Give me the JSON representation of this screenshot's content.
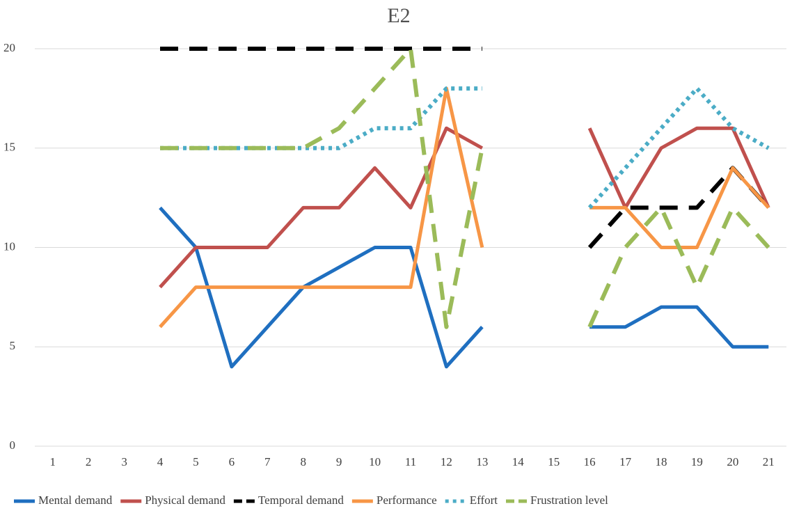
{
  "chart_data": {
    "type": "line",
    "title": "E2",
    "categories": [
      1,
      2,
      3,
      4,
      5,
      6,
      7,
      8,
      9,
      10,
      11,
      12,
      13,
      14,
      15,
      16,
      17,
      18,
      19,
      20,
      21
    ],
    "series": [
      {
        "name": "Mental demand",
        "color": "#1f6fc0",
        "style": "solid",
        "values": [
          null,
          null,
          null,
          12,
          10,
          4,
          6,
          8,
          9,
          10,
          10,
          4,
          6,
          null,
          null,
          6,
          6,
          7,
          7,
          5,
          5
        ]
      },
      {
        "name": "Physical demand",
        "color": "#c0504d",
        "style": "solid",
        "values": [
          null,
          null,
          null,
          8,
          10,
          10,
          10,
          12,
          12,
          14,
          12,
          16,
          15,
          null,
          null,
          16,
          12,
          15,
          16,
          16,
          12
        ]
      },
      {
        "name": "Temporal demand",
        "color": "#000000",
        "style": "dashed",
        "values": [
          null,
          null,
          null,
          20,
          20,
          20,
          20,
          20,
          20,
          20,
          20,
          20,
          20,
          null,
          null,
          10,
          12,
          12,
          12,
          14,
          12
        ]
      },
      {
        "name": "Performance",
        "color": "#f79646",
        "style": "solid",
        "values": [
          null,
          null,
          null,
          6,
          8,
          8,
          8,
          8,
          8,
          8,
          8,
          18,
          10,
          null,
          null,
          12,
          12,
          10,
          10,
          14,
          12
        ]
      },
      {
        "name": "Effort",
        "color": "#4bacc6",
        "style": "dotted",
        "values": [
          null,
          null,
          null,
          15,
          15,
          15,
          15,
          15,
          15,
          16,
          16,
          18,
          18,
          null,
          null,
          12,
          14,
          16,
          18,
          16,
          15
        ]
      },
      {
        "name": "Frustration level",
        "color": "#9bbb59",
        "style": "dashed",
        "values": [
          null,
          null,
          null,
          15,
          15,
          15,
          15,
          15,
          16,
          18,
          20,
          6,
          15,
          null,
          null,
          6,
          10,
          12,
          8,
          12,
          10
        ]
      }
    ],
    "ylim": [
      0,
      20
    ],
    "yticks": [
      0,
      5,
      10,
      15,
      20
    ],
    "grid": true,
    "legend": "bottom"
  }
}
